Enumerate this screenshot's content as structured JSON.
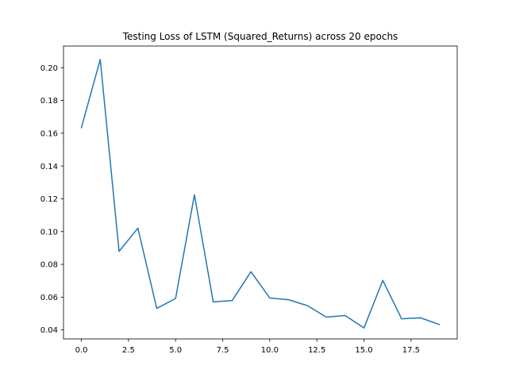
{
  "chart_data": {
    "type": "line",
    "title": "Testing Loss of LSTM (Squared_Returns) across 20 epochs",
    "xlabel": "",
    "ylabel": "",
    "xlim": [
      -0.95,
      19.95
    ],
    "ylim": [
      0.0345,
      0.2132
    ],
    "x_ticks": [
      0.0,
      2.5,
      5.0,
      7.5,
      10.0,
      12.5,
      15.0,
      17.5
    ],
    "x_tick_labels": [
      "0.0",
      "2.5",
      "5.0",
      "7.5",
      "10.0",
      "12.5",
      "15.0",
      "17.5"
    ],
    "y_ticks": [
      0.04,
      0.06,
      0.08,
      0.1,
      0.12,
      0.14,
      0.16,
      0.18,
      0.2
    ],
    "y_tick_labels": [
      "0.04",
      "0.06",
      "0.08",
      "0.10",
      "0.12",
      "0.14",
      "0.16",
      "0.18",
      "0.20"
    ],
    "grid": false,
    "line_color": "#1f77b4",
    "series": [
      {
        "x": [
          0,
          1,
          2,
          3,
          4,
          5,
          6,
          7,
          8,
          9,
          10,
          11,
          12,
          13,
          14,
          15,
          16,
          17,
          18,
          19
        ],
        "values": [
          0.1634,
          0.205,
          0.0879,
          0.1021,
          0.0531,
          0.0592,
          0.1224,
          0.0571,
          0.0579,
          0.0755,
          0.0595,
          0.0584,
          0.0548,
          0.0478,
          0.0488,
          0.0412,
          0.0702,
          0.0468,
          0.0474,
          0.0433
        ]
      }
    ]
  }
}
